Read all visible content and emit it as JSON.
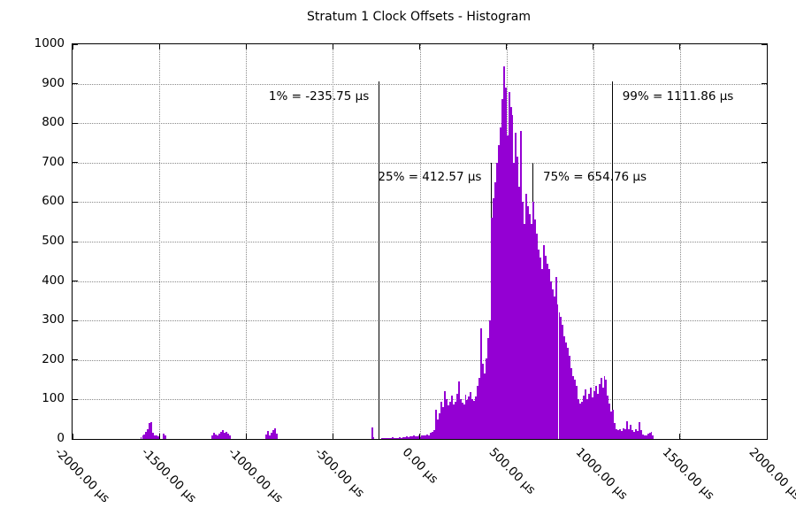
{
  "chart_data": {
    "type": "bar",
    "title": "Stratum 1 Clock Offsets - Histogram",
    "xlabel": "",
    "ylabel": "",
    "x_unit": "µs",
    "xlim": [
      -2000,
      2000
    ],
    "ylim": [
      0,
      1000
    ],
    "grid": true,
    "legend": "none",
    "bar_color": "#9400D3",
    "grid_color": "#8a8a8a",
    "bin_width_us": 10,
    "y_ticks": [
      {
        "v": 0,
        "label": "0"
      },
      {
        "v": 100,
        "label": "100"
      },
      {
        "v": 200,
        "label": "200"
      },
      {
        "v": 300,
        "label": "300"
      },
      {
        "v": 400,
        "label": "400"
      },
      {
        "v": 500,
        "label": "500"
      },
      {
        "v": 600,
        "label": "600"
      },
      {
        "v": 700,
        "label": "700"
      },
      {
        "v": 800,
        "label": "800"
      },
      {
        "v": 900,
        "label": "900"
      },
      {
        "v": 1000,
        "label": "1000"
      }
    ],
    "x_ticks": [
      {
        "us": -2000,
        "label": "-2000.00 µs"
      },
      {
        "us": -1500,
        "label": "-1500.00 µs"
      },
      {
        "us": -1000,
        "label": "-1000.00 µs"
      },
      {
        "us": -500,
        "label": "-500.00 µs"
      },
      {
        "us": 0,
        "label": "0.00 µs"
      },
      {
        "us": 500,
        "label": "500.00 µs"
      },
      {
        "us": 1000,
        "label": "1000.00 µs"
      },
      {
        "us": 1500,
        "label": "1500.00 µs"
      },
      {
        "us": 2000,
        "label": "2000.00 µs"
      }
    ],
    "annotations": [
      {
        "name": "p1",
        "label": "1% = -235.75 µs",
        "x_us": -235.75,
        "line_top": 905,
        "side": "left"
      },
      {
        "name": "p25",
        "label": "25% = 412.57 µs",
        "x_us": 412.57,
        "line_top": 700,
        "side": "left"
      },
      {
        "name": "p75",
        "label": "75% = 654.76 µs",
        "x_us": 654.76,
        "line_top": 700,
        "side": "right"
      },
      {
        "name": "p99",
        "label": "99% = 1111.86 µs",
        "x_us": 1111.86,
        "line_top": 905,
        "side": "right"
      }
    ],
    "segments": [
      {
        "start_us": -1610,
        "counts": [
          5,
          8,
          12,
          18,
          25,
          40,
          42,
          15,
          10,
          8,
          6,
          0,
          0,
          13,
          9
        ]
      },
      {
        "start_us": -1200,
        "counts": [
          10,
          16,
          12,
          8,
          14,
          19,
          22,
          16,
          19,
          13,
          8
        ]
      },
      {
        "start_us": -890,
        "counts": [
          12,
          20,
          10,
          16,
          22,
          28,
          14
        ]
      },
      {
        "start_us": -280,
        "counts": [
          30,
          4,
          0,
          0,
          0,
          0,
          2,
          3,
          2,
          3,
          2,
          3,
          4,
          3,
          2,
          3,
          4,
          3,
          5,
          4,
          6,
          5,
          7,
          6,
          9,
          7,
          6,
          8,
          5,
          8,
          10,
          8,
          12,
          10,
          15,
          18,
          22,
          75,
          50,
          65,
          95,
          80,
          120,
          100,
          85,
          95,
          110,
          88,
          95,
          115,
          146,
          100,
          92,
          88,
          112,
          98,
          108,
          118,
          102,
          96,
          108,
          135,
          155,
          280,
          190,
          165,
          205,
          255,
          300,
          560,
          610,
          650,
          700,
          745,
          790,
          860,
          945,
          890,
          770,
          880,
          840,
          820,
          700,
          775,
          715,
          640,
          780,
          600,
          545,
          620,
          590,
          570,
          545,
          600,
          555,
          520,
          480,
          460,
          430,
          490,
          465,
          445,
          430,
          400,
          380,
          360,
          410,
          340,
          320,
          310,
          290,
          260,
          245,
          230,
          210,
          180,
          160,
          150,
          135,
          100,
          90,
          95,
          110,
          125,
          100,
          115,
          130,
          105,
          120,
          135,
          115,
          140,
          155,
          130,
          160,
          150,
          110,
          90,
          70,
          75,
          40,
          25,
          22,
          25,
          20,
          28,
          25,
          45,
          25,
          35,
          22,
          18,
          25,
          20,
          42,
          22,
          12,
          10,
          8,
          14,
          16,
          18,
          8
        ]
      }
    ]
  }
}
